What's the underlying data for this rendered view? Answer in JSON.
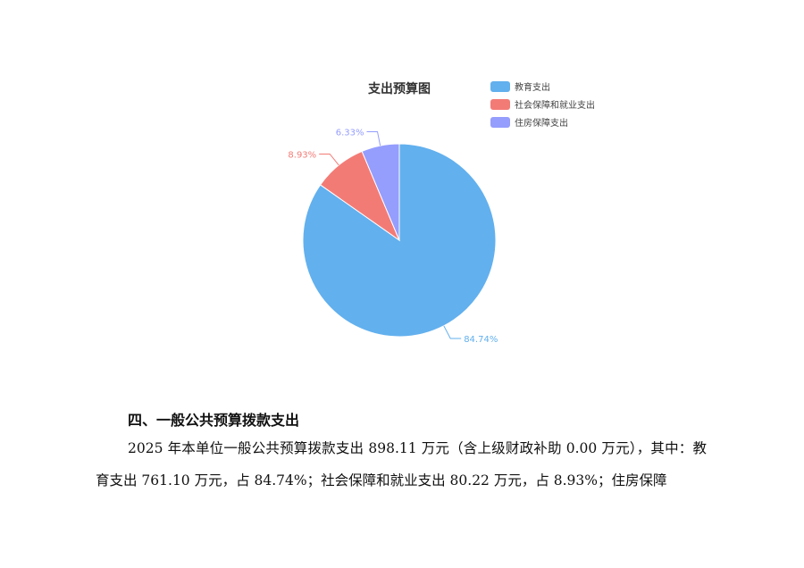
{
  "chart_data": {
    "type": "pie",
    "title": "支出预算图",
    "legend_position": "top-right",
    "categories": [
      "教育支出",
      "社会保障和就业支出",
      "住房保障支出"
    ],
    "values": [
      84.74,
      8.93,
      6.33
    ],
    "labels": [
      "84.74%",
      "8.93%",
      "6.33%"
    ],
    "colors": [
      "#62b0ee",
      "#f37b76",
      "#959dfd"
    ]
  },
  "document": {
    "heading": "四、一般公共预算拨款支出",
    "paragraph": "2025 年本单位一般公共预算拨款支出 898.11 万元（含上级财政补助 0.00 万元），其中：教育支出 761.10 万元，占 84.74%；社会保障和就业支出 80.22 万元，占 8.93%；住房保障"
  }
}
